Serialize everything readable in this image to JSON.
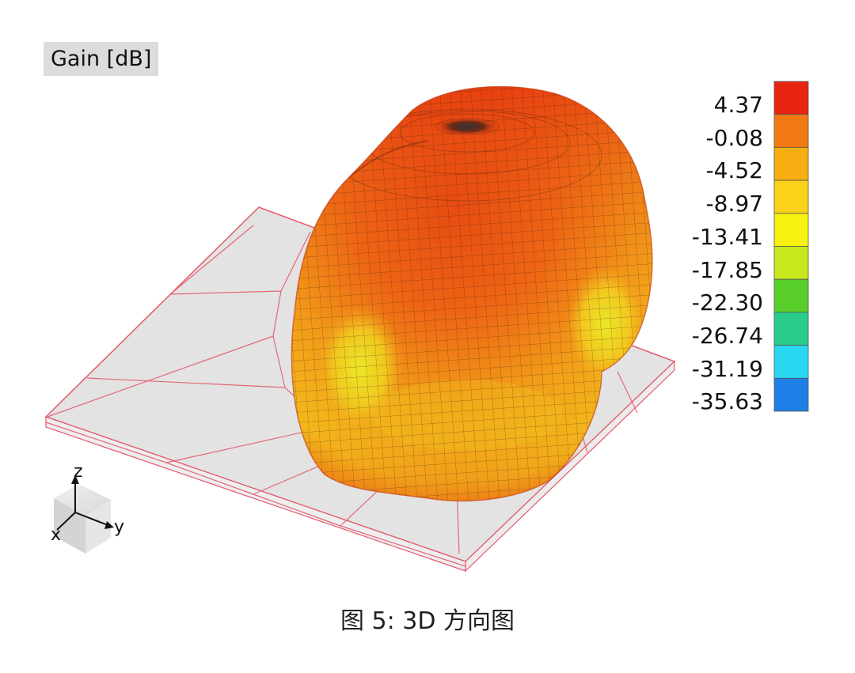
{
  "chart_data": {
    "type": "heatmap",
    "title": "Gain [dB]",
    "colorbar": {
      "ticks": [
        "4.37",
        "-0.08",
        "-4.52",
        "-8.97",
        "-13.41",
        "-17.85",
        "-22.30",
        "-26.74",
        "-31.19",
        "-35.63"
      ],
      "colors": [
        "#e82510",
        "#f27a13",
        "#f8ad10",
        "#fbd21a",
        "#f7f20f",
        "#c7e81c",
        "#58cf2a",
        "#29cc8c",
        "#2bd8f2",
        "#1f7fe6"
      ]
    },
    "axes": [
      "z",
      "y",
      "x"
    ]
  },
  "caption": "图 5: 3D 方向图"
}
